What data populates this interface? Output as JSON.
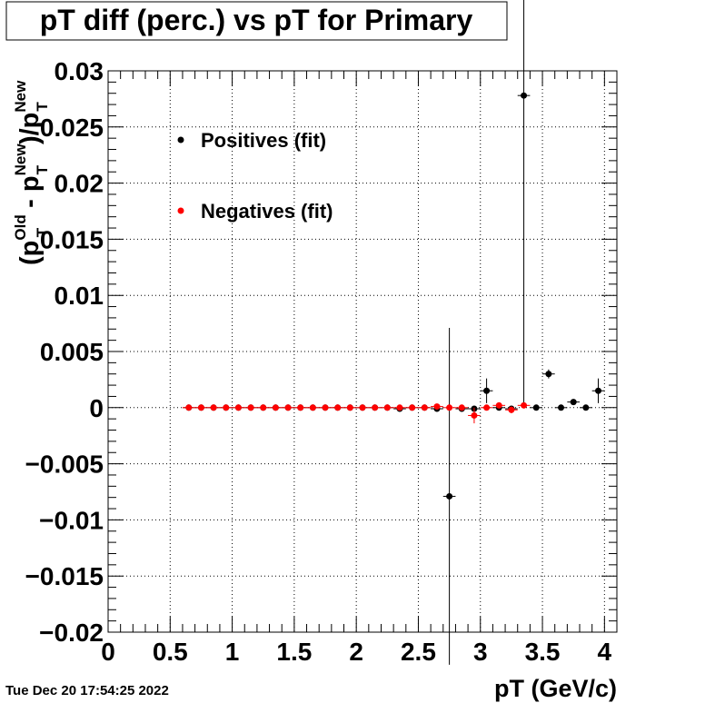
{
  "chart_data": {
    "type": "scatter",
    "title": "pT diff (perc.) vs pT for Primary",
    "xlabel": "pT (GeV/c)",
    "ylabel": "(pT^Old - pT^New)/pT^New",
    "ylabel_parts": {
      "open": "(p",
      "old_sup": "Old",
      "old_sub": "T",
      "minus": " - p",
      "new_sup": "New",
      "new_sub": "T",
      "close": ")/p",
      "den_sup": "New",
      "den_sub": "T"
    },
    "xlim": [
      0,
      4.1
    ],
    "ylim": [
      -0.02,
      0.03
    ],
    "x_ticks": [
      0,
      0.5,
      1,
      1.5,
      2,
      2.5,
      3,
      3.5,
      4
    ],
    "x_tick_labels": [
      "0",
      "0.5",
      "1",
      "1.5",
      "2",
      "2.5",
      "3",
      "3.5",
      "4"
    ],
    "y_ticks": [
      -0.02,
      -0.015,
      -0.01,
      -0.005,
      0,
      0.005,
      0.01,
      0.015,
      0.02,
      0.025,
      0.03
    ],
    "y_tick_labels": [
      "−0.02",
      "−0.015",
      "−0.01",
      "−0.005",
      "0",
      "0.005",
      "0.01",
      "0.015",
      "0.02",
      "0.025",
      "0.03"
    ],
    "grid": true,
    "legend_position": "top-left",
    "series": [
      {
        "name": "Positives (fit)",
        "color": "#000000",
        "x": [
          0.65,
          0.75,
          0.85,
          0.95,
          1.05,
          1.15,
          1.25,
          1.35,
          1.45,
          1.55,
          1.65,
          1.75,
          1.85,
          1.95,
          2.05,
          2.15,
          2.25,
          2.35,
          2.45,
          2.55,
          2.65,
          2.75,
          2.85,
          2.95,
          3.05,
          3.15,
          3.25,
          3.35,
          3.45,
          3.55,
          3.65,
          3.75,
          3.85,
          3.95
        ],
        "y": [
          0,
          0,
          0,
          0,
          0,
          0,
          0,
          0,
          0,
          0,
          0,
          0,
          0,
          0,
          0,
          0,
          0,
          -0.0001,
          0,
          0,
          -0.0001,
          -0.0079,
          -0.0001,
          -0.0001,
          0.0015,
          0,
          -0.0001,
          0.0278,
          0,
          0.003,
          0,
          0.0005,
          0,
          0.0015
        ],
        "yerr": [
          0,
          0,
          0,
          0,
          0,
          0,
          0,
          0,
          0,
          0,
          0,
          0,
          0,
          0,
          0,
          0,
          0,
          0,
          0,
          0,
          0.0001,
          0.015,
          0.0001,
          0.0002,
          0.0011,
          0.0001,
          0.0002,
          0.0278,
          0.0001,
          0.0004,
          0.0001,
          0.0002,
          0.0001,
          0.0011
        ]
      },
      {
        "name": "Negatives (fit)",
        "color": "#ff0000",
        "x": [
          0.65,
          0.75,
          0.85,
          0.95,
          1.05,
          1.15,
          1.25,
          1.35,
          1.45,
          1.55,
          1.65,
          1.75,
          1.85,
          1.95,
          2.05,
          2.15,
          2.25,
          2.35,
          2.45,
          2.55,
          2.65,
          2.75,
          2.85,
          2.95,
          3.05,
          3.15,
          3.25,
          3.35
        ],
        "y": [
          0,
          0,
          0,
          0,
          0,
          0,
          0,
          0,
          0,
          0,
          0,
          0,
          0,
          0,
          0,
          0,
          0,
          0,
          0,
          0,
          0.0001,
          0,
          0,
          -0.0007,
          0,
          0.0002,
          -0.0002,
          0.0002
        ],
        "yerr": [
          0,
          0,
          0,
          0,
          0,
          0,
          0,
          0,
          0,
          0,
          0,
          0,
          0,
          0,
          0,
          0,
          0,
          0,
          0,
          0,
          0.0001,
          0.0001,
          0.0001,
          0.0007,
          0.0001,
          0.0002,
          0.0003,
          0.0001
        ]
      }
    ]
  },
  "timestamp": "Tue Dec 20 17:54:25 2022"
}
